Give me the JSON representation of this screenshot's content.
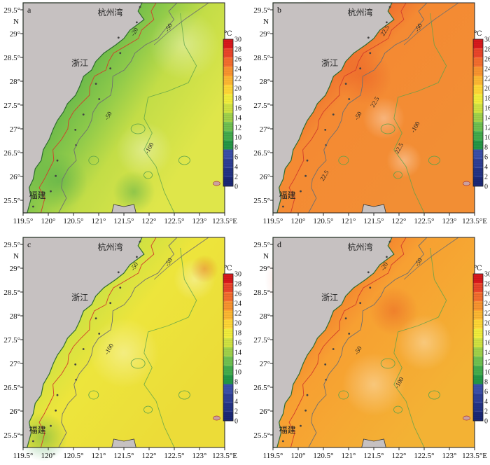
{
  "chart_data": {
    "type": "heatmap",
    "panels": [
      {
        "panel_label": "a",
        "labels": {
          "bay": "杭州湾",
          "province_north": "浙江",
          "province_south": "福建"
        },
        "x_ticks": [
          "119.5°",
          "120°",
          "120.5°",
          "121°",
          "121.5°",
          "122°",
          "122.5°",
          "123°",
          "123.5°E"
        ],
        "y_ticks": [
          "29.5°",
          "29°",
          "28.5°",
          "28°",
          "27.5°",
          "27°",
          "26.5°",
          "26°",
          "25.5°"
        ],
        "north_label": "N",
        "contour_labels": [
          "-20",
          "-50",
          "-50",
          "-100"
        ],
        "colorbar": {
          "unit": "℃",
          "ticks": [
            "30",
            "28",
            "26",
            "24",
            "22",
            "20",
            "18",
            "16",
            "14",
            "12",
            "10",
            "8",
            "6",
            "4",
            "2",
            "0"
          ]
        },
        "field_range": [
          9,
          17
        ]
      },
      {
        "panel_label": "b",
        "labels": {
          "bay": "杭州湾",
          "province_north": "浙江",
          "province_south": "福建"
        },
        "x_ticks": [
          "119.5°",
          "120°",
          "120.5°",
          "121°",
          "121.5°",
          "122°",
          "122.5°",
          "123°",
          "123.5°E"
        ],
        "y_ticks": [
          "29.5°",
          "29°",
          "28.5°",
          "28°",
          "27.5°",
          "27°",
          "26.5°",
          "26°",
          "25.5°"
        ],
        "north_label": "N",
        "contour_labels": [
          "22.5",
          "-50",
          "-50",
          "22.5",
          "22.5",
          "-100",
          "22.5"
        ],
        "colorbar": {
          "unit": "℃",
          "ticks": [
            "30",
            "28",
            "26",
            "24",
            "22",
            "20",
            "18",
            "16",
            "14",
            "12",
            "10",
            "8",
            "6",
            "4",
            "2",
            "0"
          ]
        },
        "field_range": [
          21,
          26
        ]
      },
      {
        "panel_label": "c",
        "labels": {
          "bay": "杭州湾",
          "province_north": "浙江",
          "province_south": "福建"
        },
        "x_ticks": [
          "119.5°",
          "120°",
          "120.5°",
          "121°",
          "121.5°",
          "122°",
          "122.5°",
          "123°",
          "123.5°E"
        ],
        "y_ticks": [
          "29.5°",
          "29°",
          "28.5°",
          "28°",
          "27.5°",
          "27°",
          "26.5°",
          "26°",
          "25.5°"
        ],
        "north_label": "N",
        "contour_labels": [
          "-50",
          "-50",
          "-100"
        ],
        "colorbar": {
          "unit": "℃",
          "ticks": [
            "30",
            "28",
            "26",
            "24",
            "22",
            "20",
            "18",
            "16",
            "14",
            "12",
            "10",
            "8",
            "6",
            "4",
            "2",
            "0"
          ]
        },
        "field_range": [
          11,
          20
        ]
      },
      {
        "panel_label": "d",
        "labels": {
          "bay": "杭州湾",
          "province_north": "浙江",
          "province_south": "福建"
        },
        "x_ticks": [
          "119.5°",
          "120°",
          "120.5°",
          "121°",
          "121.5°",
          "122°",
          "122.5°",
          "123°",
          "123.5°E"
        ],
        "y_ticks": [
          "29.5°",
          "29°",
          "28.5°",
          "28°",
          "27.5°",
          "27°",
          "26.5°",
          "26°",
          "25.5°"
        ],
        "north_label": "N",
        "contour_labels": [
          "-20",
          "-50",
          "-50",
          "-100"
        ],
        "colorbar": {
          "unit": "℃",
          "ticks": [
            "30",
            "28",
            "26",
            "24",
            "22",
            "20",
            "18",
            "16",
            "14",
            "12",
            "10",
            "8",
            "6",
            "4",
            "2",
            "0"
          ]
        },
        "field_range": [
          19,
          24
        ]
      }
    ],
    "colors": {
      "land": "#c6c1c1",
      "coast_edge": "#2e6b2e",
      "contour_red": "#d23c2a",
      "contour_gray": "#6f6f6f",
      "contour_green": "#5aa14a",
      "colorbar_stops": [
        "#d7191c",
        "#e8452a",
        "#f26d2e",
        "#f7932f",
        "#fbb632",
        "#fdd535",
        "#f0ec3b",
        "#cfe141",
        "#9fd04a",
        "#6fc050",
        "#43ab4c",
        "#249646",
        "#3b4fa8",
        "#2e3f95",
        "#233385",
        "#1b2876"
      ]
    }
  }
}
